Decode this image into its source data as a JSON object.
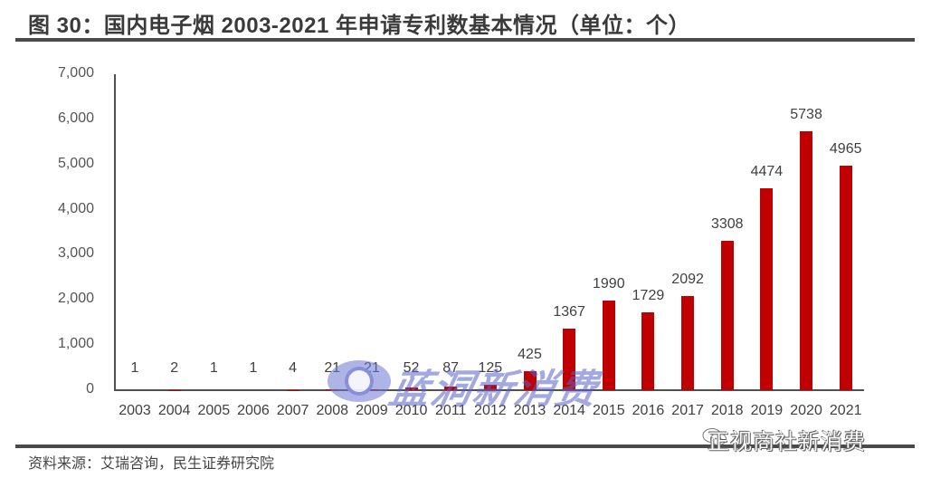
{
  "header": {
    "title": "图 30：国内电子烟 2003-2021 年申请专利数基本情况（单位：个）"
  },
  "footer": {
    "source": "资料来源：艾瑞咨询，民生证券研究院"
  },
  "watermarks": {
    "center": "蓝洞新消费",
    "corner": "正视商社新消费"
  },
  "colors": {
    "bar": "#c00000",
    "axis": "#505050",
    "rule": "#4a4a4a"
  },
  "chart_data": {
    "type": "bar",
    "title": "国内电子烟 2003-2021 年申请专利数基本情况（单位：个）",
    "xlabel": "",
    "ylabel": "",
    "categories": [
      "2003",
      "2004",
      "2005",
      "2006",
      "2007",
      "2008",
      "2009",
      "2010",
      "2011",
      "2012",
      "2013",
      "2014",
      "2015",
      "2016",
      "2017",
      "2018",
      "2019",
      "2020",
      "2021"
    ],
    "values": [
      1,
      2,
      1,
      1,
      4,
      21,
      21,
      52,
      87,
      125,
      425,
      1367,
      1990,
      1729,
      2092,
      3308,
      4474,
      5738,
      4965
    ],
    "value_labels": [
      "1",
      "2",
      "1",
      "1",
      "4",
      "21",
      "21",
      "52",
      "87",
      "125",
      "425",
      "1367",
      "1990",
      "1729",
      "2092",
      "3308",
      "4474",
      "5738",
      "4965"
    ],
    "ylim": [
      0,
      7000
    ],
    "yticks": [
      "0",
      "1,000",
      "2,000",
      "3,000",
      "4,000",
      "5,000",
      "6,000",
      "7,000"
    ],
    "ytick_values": [
      0,
      1000,
      2000,
      3000,
      4000,
      5000,
      6000,
      7000
    ],
    "grid": false,
    "legend": null,
    "series_color": "#c00000"
  }
}
